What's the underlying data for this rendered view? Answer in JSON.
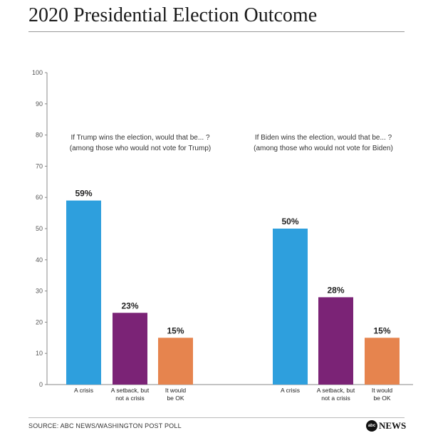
{
  "title": "2020 Presidential Election Outcome",
  "source": "SOURCE: ABC NEWS/WASHINGTON POST POLL",
  "logo": {
    "mark": "abc",
    "text": "NEWS"
  },
  "chart_data": {
    "type": "bar",
    "ylim": [
      0,
      100
    ],
    "yticks": [
      "0",
      "10",
      "20",
      "30",
      "40",
      "50",
      "60",
      "70",
      "80",
      "90",
      "100"
    ],
    "grid": false,
    "groups": [
      {
        "caption": [
          "If Trump wins the election, would that be... ?",
          "(among those who would not vote for Trump)"
        ],
        "bars": [
          {
            "label": [
              "A crisis"
            ],
            "value": 59,
            "value_label": "59%",
            "color": "#2e9fdd"
          },
          {
            "label": [
              "A setback, but",
              "not a crisis"
            ],
            "value": 23,
            "value_label": "23%",
            "color": "#7b2376"
          },
          {
            "label": [
              "It would",
              "be OK"
            ],
            "value": 15,
            "value_label": "15%",
            "color": "#e6844e"
          }
        ]
      },
      {
        "caption": [
          "If Biden wins the election, would that be... ?",
          "(among those who would not vote for Biden)"
        ],
        "bars": [
          {
            "label": [
              "A crisis"
            ],
            "value": 50,
            "value_label": "50%",
            "color": "#2e9fdd"
          },
          {
            "label": [
              "A setback, but",
              "not a crisis"
            ],
            "value": 28,
            "value_label": "28%",
            "color": "#7b2376"
          },
          {
            "label": [
              "It would",
              "be OK"
            ],
            "value": 15,
            "value_label": "15%",
            "color": "#e6844e"
          }
        ]
      }
    ]
  }
}
